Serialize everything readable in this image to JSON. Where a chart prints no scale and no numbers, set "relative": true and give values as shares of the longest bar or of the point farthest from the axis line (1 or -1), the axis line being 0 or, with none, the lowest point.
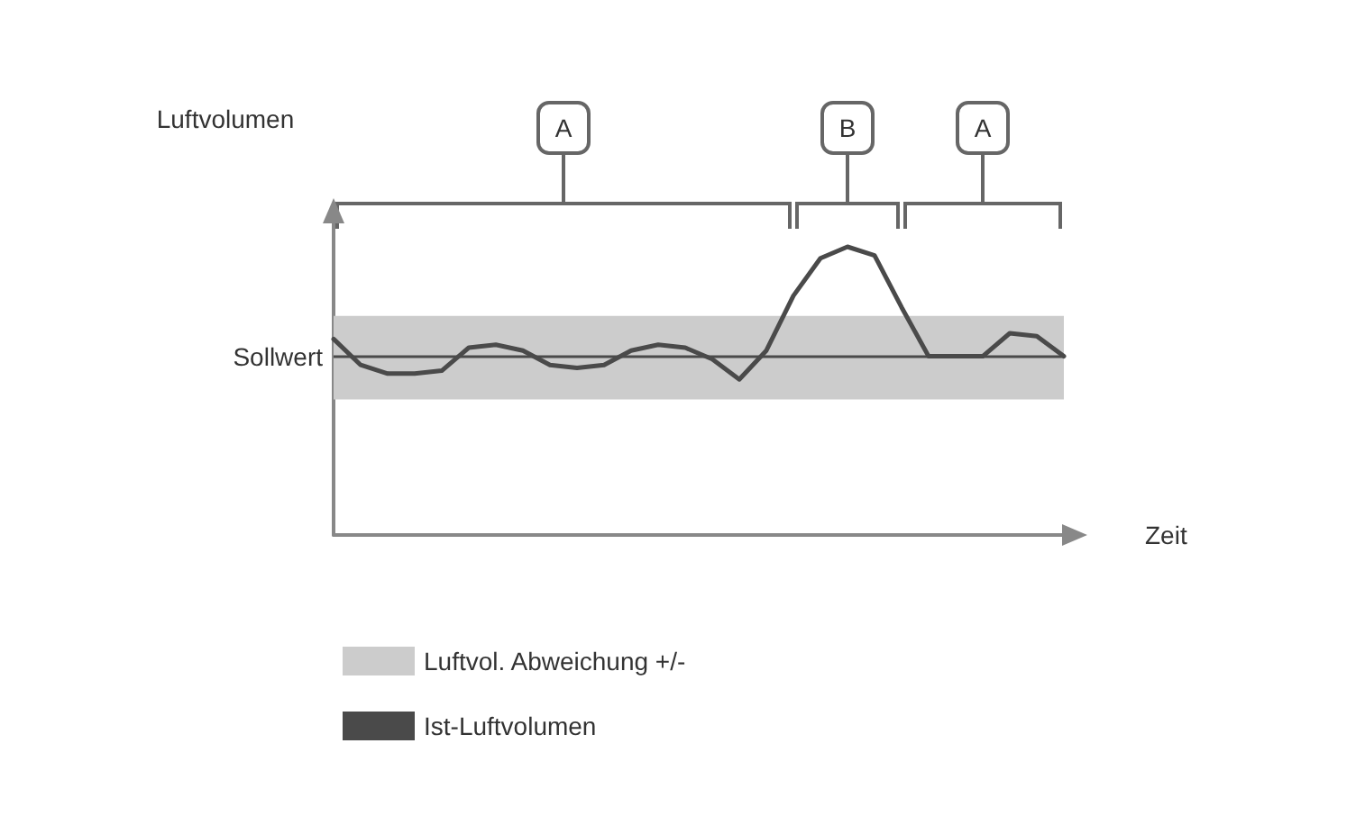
{
  "chart_data": {
    "type": "line",
    "relative": true,
    "xlabel": "Zeit",
    "ylabel": "Luftvolumen",
    "categories": [
      null,
      null,
      null,
      null,
      null,
      null,
      null,
      null,
      null,
      null,
      null,
      null,
      null,
      null,
      null,
      null,
      null,
      null,
      null,
      null,
      null,
      null,
      null,
      null,
      null,
      null,
      null,
      null
    ],
    "series": [
      {
        "name": "Ist-Luftvolumen",
        "color": "#4a4a4a",
        "values": [
          0.68,
          0.59,
          0.56,
          0.56,
          0.57,
          0.65,
          0.66,
          0.64,
          0.59,
          0.58,
          0.59,
          0.64,
          0.66,
          0.65,
          0.61,
          0.54,
          0.64,
          0.83,
          0.96,
          1,
          0.97,
          0.79,
          0.62,
          0.62,
          0.62,
          0.7,
          0.69,
          0.62
        ]
      }
    ],
    "ref_lines": [
      {
        "axis": "y",
        "value": 0.62,
        "label": "Sollwert",
        "color": "#4a4a4a"
      }
    ],
    "bands": [
      {
        "axis": "y",
        "from": 0.47,
        "to": 0.76,
        "label": "Luftvol. Abweichung +/-",
        "color": "#cccccc"
      }
    ],
    "annotations": [
      "A",
      "B",
      "A"
    ],
    "legend": "bottom",
    "grid": false,
    "marker": "none",
    "line_style": "solid"
  }
}
